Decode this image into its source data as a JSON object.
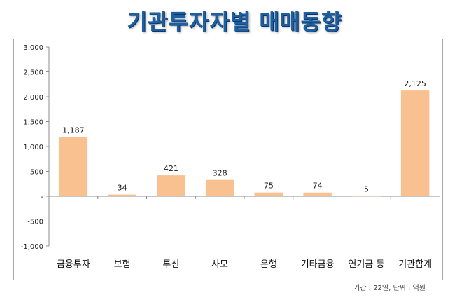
{
  "title": "기관투자자별 매매동향",
  "note": "기간 : 22일, 단위 : 억원",
  "chart_data": {
    "type": "bar",
    "categories": [
      "금융투자",
      "보험",
      "투신",
      "사모",
      "은행",
      "기타금융",
      "연기금 등",
      "기관합계"
    ],
    "values": [
      1187,
      34,
      421,
      328,
      75,
      74,
      5,
      2125
    ],
    "value_labels": [
      "1,187",
      "34",
      "421",
      "328",
      "75",
      "74",
      "5",
      "2,125"
    ],
    "ylim": [
      -1000,
      3000
    ],
    "yticks": [
      3000,
      2500,
      2000,
      1500,
      1000,
      500,
      0,
      -500,
      -1000
    ],
    "ytick_labels": [
      "3,000",
      "2,500",
      "2,000",
      "1,500",
      "1,000",
      "500",
      "-",
      "-500",
      "-1,000"
    ],
    "bar_color": "#f9c090",
    "grid": false,
    "title": "기관투자자별 매매동향"
  }
}
